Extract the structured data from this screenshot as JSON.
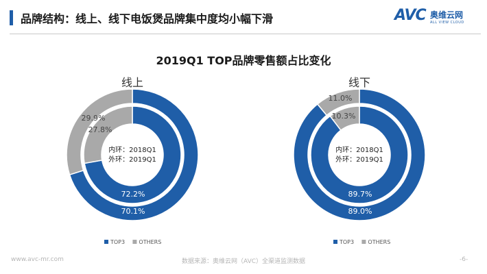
{
  "header": {
    "title": "品牌结构：线上、线下电饭煲品牌集中度均小幅下滑",
    "logo_mark": "AVC",
    "logo_cn": "奥维云网",
    "logo_en": "ALL VIEW CLOUD"
  },
  "footer": {
    "website": "www.avc-mr.com",
    "source": "数据来源：奥维云网（AVC）全渠道监测数据",
    "page": "-6-"
  },
  "colors": {
    "top3": "#1f5ea8",
    "top3_inner": "#1f5ea8",
    "others": "#a9a9a9",
    "inner_fill": "#ffffff",
    "accent": "#1f5ea8"
  },
  "chart_data": {
    "type": "pie",
    "title": "2019Q1 TOP品牌零售额占比变化",
    "legend": {
      "placement": "bottom",
      "entries": [
        "TOP3",
        "OTHERS"
      ]
    },
    "charts": [
      {
        "name": "线上",
        "center_label": [
          "内环：2018Q1",
          "外环：2019Q1"
        ],
        "outer_ring": {
          "period": "2019Q1",
          "TOP3": 70.1,
          "OTHERS": 29.9,
          "labels": {
            "TOP3": "70.1%",
            "OTHERS": "29.9%"
          }
        },
        "inner_ring": {
          "period": "2018Q1",
          "TOP3": 72.2,
          "OTHERS": 27.8,
          "labels": {
            "TOP3": "72.2%",
            "OTHERS": "27.8%"
          }
        }
      },
      {
        "name": "线下",
        "center_label": [
          "内环：2018Q1",
          "外环：2019Q1"
        ],
        "outer_ring": {
          "period": "2019Q1",
          "TOP3": 89.0,
          "OTHERS": 11.0,
          "labels": {
            "TOP3": "89.0%",
            "OTHERS": "11.0%"
          }
        },
        "inner_ring": {
          "period": "2018Q1",
          "TOP3": 89.7,
          "OTHERS": 10.3,
          "labels": {
            "TOP3": "89.7%",
            "OTHERS": "10.3%"
          }
        }
      }
    ]
  }
}
